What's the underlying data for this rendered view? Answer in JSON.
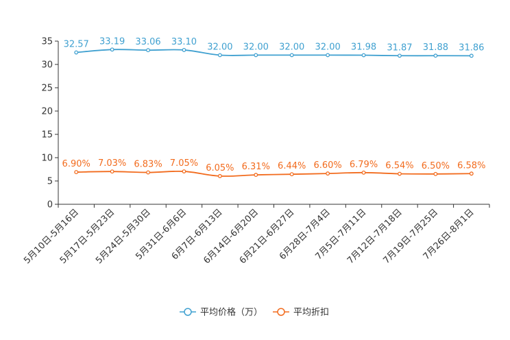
{
  "chart_data": {
    "type": "line",
    "title": "",
    "xlabel": "",
    "ylabel": "",
    "ylim": [
      0,
      35
    ],
    "yticks": [
      0,
      5,
      10,
      15,
      20,
      25,
      30,
      35
    ],
    "grid": false,
    "legend_position": "bottom-center",
    "categories": [
      "5月10日-5月16日",
      "5月17日-5月23日",
      "5月24日-5月30日",
      "5月31日-6月6日",
      "6月7日-6月13日",
      "6月14日-6月20日",
      "6月21日-6月27日",
      "6月28日-7月4日",
      "7月5日-7月11日",
      "7月12日-7月18日",
      "7月19日-7月25日",
      "7月26日-8月1日"
    ],
    "series": [
      {
        "name": "平均价格（万）",
        "color": "#3fa0d0",
        "values": [
          32.57,
          33.19,
          33.06,
          33.1,
          32.0,
          32.0,
          32.0,
          32.0,
          31.98,
          31.87,
          31.88,
          31.86
        ],
        "labels": [
          "32.57",
          "33.19",
          "33.06",
          "33.10",
          "32.00",
          "32.00",
          "32.00",
          "32.00",
          "31.98",
          "31.87",
          "31.88",
          "31.86"
        ]
      },
      {
        "name": "平均折扣",
        "color": "#f26b1d",
        "values": [
          6.9,
          7.03,
          6.83,
          7.05,
          6.05,
          6.31,
          6.44,
          6.6,
          6.79,
          6.54,
          6.5,
          6.58
        ],
        "labels": [
          "6.90%",
          "7.03%",
          "6.83%",
          "7.05%",
          "6.05%",
          "6.31%",
          "6.44%",
          "6.60%",
          "6.79%",
          "6.54%",
          "6.50%",
          "6.58%"
        ]
      }
    ]
  }
}
